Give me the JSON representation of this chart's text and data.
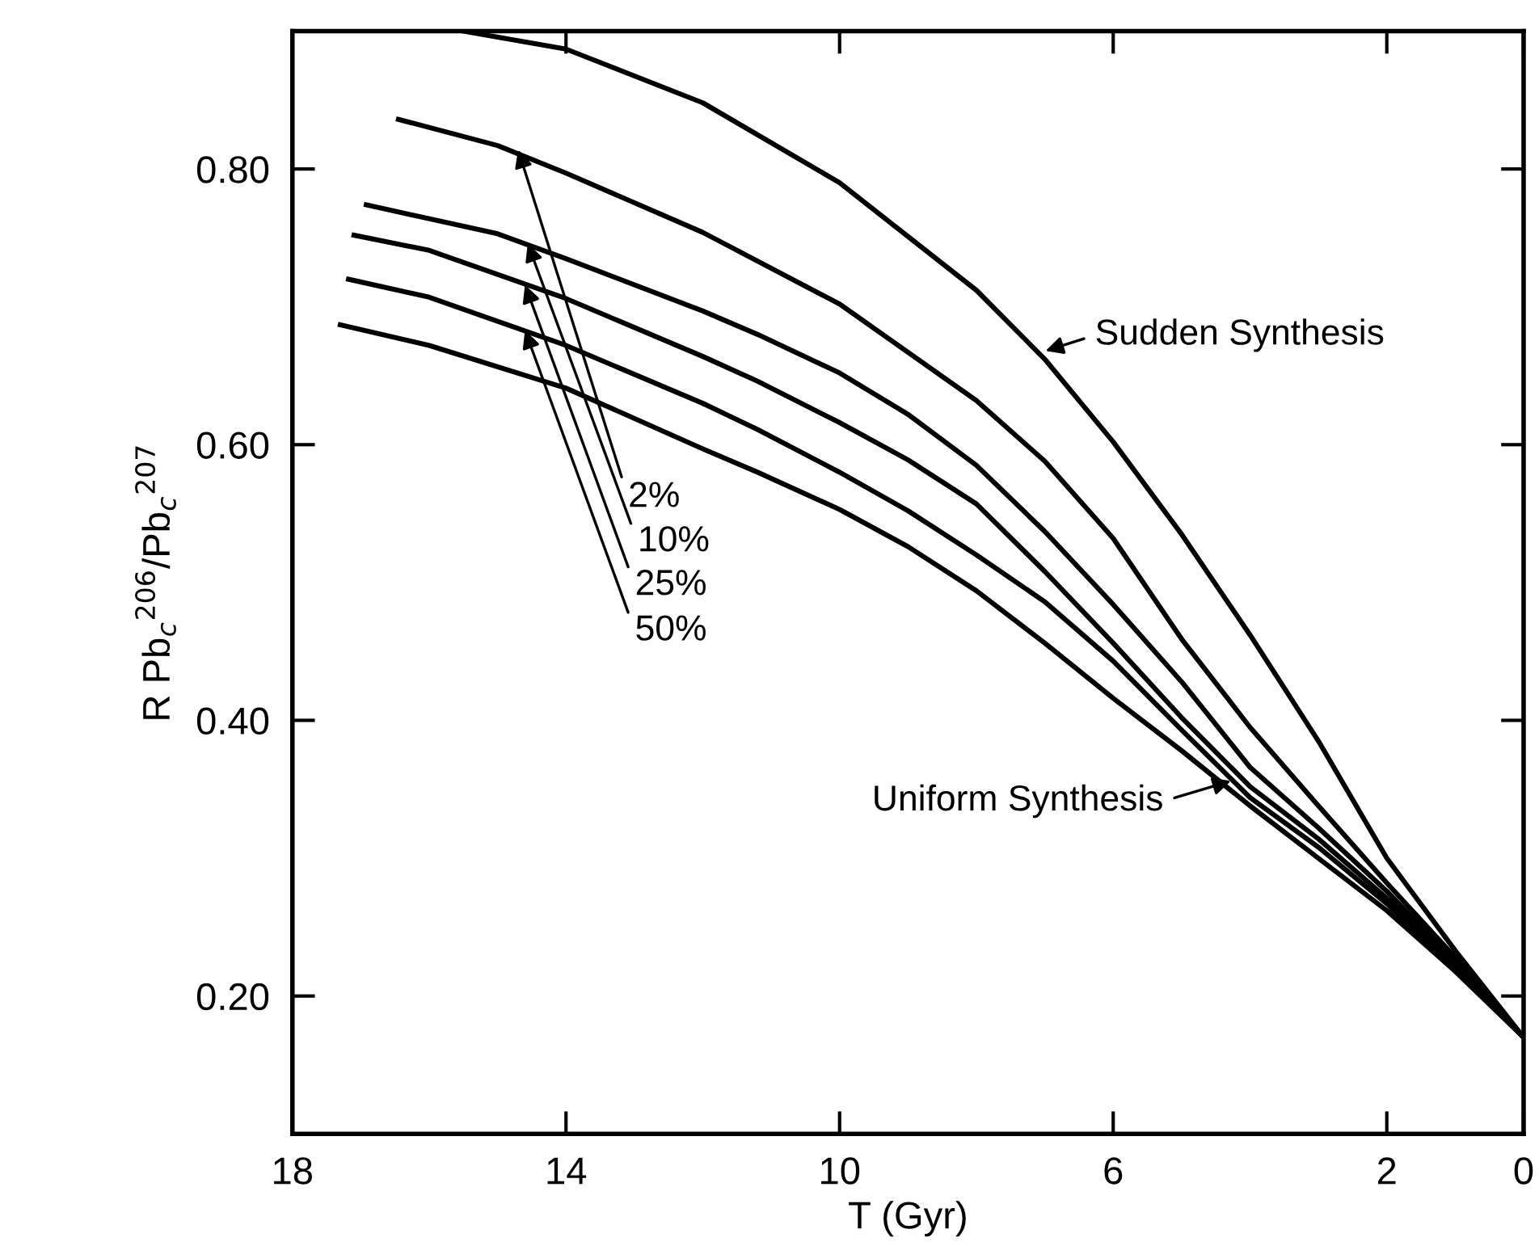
{
  "chart_data": {
    "type": "line",
    "xlabel": "T (Gyr)",
    "ylabel": "R Pb$_{c}$$^{206}$/Pb$_{c}$$^{207}$",
    "xlim": [
      18,
      0
    ],
    "ylim": [
      0.1,
      0.9
    ],
    "xticks": [
      18,
      14,
      10,
      6,
      2,
      0
    ],
    "yticks": [
      {
        "value": 0.2,
        "label": "0.20"
      },
      {
        "value": 0.4,
        "label": "0.40"
      },
      {
        "value": 0.6,
        "label": "0.60"
      },
      {
        "value": 0.8,
        "label": "0.80"
      }
    ],
    "grid": false,
    "legend": false,
    "marker": "none",
    "line_style": "solid",
    "series": [
      {
        "color": "#000000",
        "x": [
          15.5,
          14,
          12,
          10,
          8,
          7,
          6,
          5,
          4,
          3,
          2,
          1,
          0
        ],
        "values": [
          0.9,
          0.887,
          0.848,
          0.79,
          0.712,
          0.662,
          0.602,
          0.535,
          0.462,
          0.385,
          0.3,
          0.233,
          0.17
        ]
      },
      {
        "color": "#000000",
        "x": [
          16.45,
          15,
          14,
          12,
          10,
          8,
          7,
          6,
          5,
          4,
          3,
          2,
          1,
          0
        ],
        "values": [
          0.836,
          0.817,
          0.797,
          0.754,
          0.702,
          0.632,
          0.588,
          0.532,
          0.459,
          0.395,
          0.338,
          0.282,
          0.228,
          0.17
        ]
      },
      {
        "color": "#000000",
        "x": [
          16.92,
          15,
          14,
          12,
          11.2,
          10,
          9,
          8,
          7,
          6,
          5,
          4,
          3,
          2,
          1,
          0
        ],
        "values": [
          0.774,
          0.753,
          0.735,
          0.697,
          0.68,
          0.652,
          0.622,
          0.585,
          0.537,
          0.484,
          0.428,
          0.366,
          0.322,
          0.276,
          0.225,
          0.17
        ]
      },
      {
        "color": "#000000",
        "x": [
          17.1,
          16,
          14,
          12,
          11.2,
          10,
          9,
          8,
          7,
          6,
          5,
          4,
          3,
          2,
          1,
          0
        ],
        "values": [
          0.752,
          0.741,
          0.706,
          0.664,
          0.646,
          0.616,
          0.589,
          0.557,
          0.508,
          0.456,
          0.402,
          0.352,
          0.314,
          0.271,
          0.222,
          0.17
        ]
      },
      {
        "color": "#000000",
        "x": [
          17.18,
          16,
          14,
          12,
          11.2,
          10,
          9,
          8,
          7,
          6,
          5,
          4,
          3,
          2,
          1,
          0
        ],
        "values": [
          0.72,
          0.707,
          0.672,
          0.63,
          0.611,
          0.58,
          0.552,
          0.52,
          0.486,
          0.443,
          0.393,
          0.344,
          0.308,
          0.267,
          0.22,
          0.17
        ]
      },
      {
        "color": "#000000",
        "x": [
          17.3,
          16,
          14,
          12,
          11.2,
          10,
          9,
          8,
          7,
          6,
          5,
          4,
          3,
          2,
          1,
          0
        ],
        "values": [
          0.687,
          0.672,
          0.641,
          0.597,
          0.58,
          0.553,
          0.526,
          0.494,
          0.456,
          0.416,
          0.378,
          0.338,
          0.3,
          0.262,
          0.218,
          0.17
        ]
      }
    ],
    "annotations": [
      {
        "text": "Sudden Synthesis",
        "x": 6.99,
        "y": 0.668
      },
      {
        "text": "2%",
        "x": 14.7,
        "y": 0.814
      },
      {
        "text": "10%",
        "x": 14.56,
        "y": 0.746
      },
      {
        "text": "25%",
        "x": 14.6,
        "y": 0.716
      },
      {
        "text": "50%",
        "x": 14.6,
        "y": 0.683
      },
      {
        "text": "Uniform Synthesis",
        "x": 4.28,
        "y": 0.356
      }
    ]
  }
}
